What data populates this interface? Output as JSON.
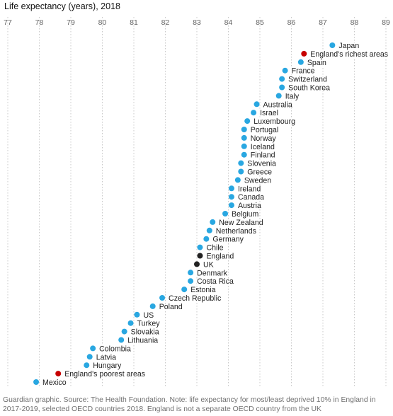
{
  "chart_data": {
    "type": "scatter",
    "title": "Life expectancy (years), 2018",
    "xlim": [
      77,
      89
    ],
    "x_ticks": [
      77,
      78,
      79,
      80,
      81,
      82,
      83,
      84,
      85,
      86,
      87,
      88,
      89
    ],
    "grid": "vertical dotted",
    "colors": {
      "country": "#29a7e1",
      "england_deprivation": "#c70000",
      "england_uk": "#222222"
    },
    "points": [
      {
        "label": "Japan",
        "value": 87.3,
        "group": "country"
      },
      {
        "label": "England's richest areas",
        "value": 86.4,
        "group": "england_deprivation"
      },
      {
        "label": "Spain",
        "value": 86.3,
        "group": "country"
      },
      {
        "label": "France",
        "value": 85.8,
        "group": "country"
      },
      {
        "label": "Switzerland",
        "value": 85.7,
        "group": "country"
      },
      {
        "label": "South Korea",
        "value": 85.7,
        "group": "country"
      },
      {
        "label": "Italy",
        "value": 85.6,
        "group": "country"
      },
      {
        "label": "Australia",
        "value": 84.9,
        "group": "country"
      },
      {
        "label": "Israel",
        "value": 84.8,
        "group": "country"
      },
      {
        "label": "Luxembourg",
        "value": 84.6,
        "group": "country"
      },
      {
        "label": "Portugal",
        "value": 84.5,
        "group": "country"
      },
      {
        "label": "Norway",
        "value": 84.5,
        "group": "country"
      },
      {
        "label": "Iceland",
        "value": 84.5,
        "group": "country"
      },
      {
        "label": "Finland",
        "value": 84.5,
        "group": "country"
      },
      {
        "label": "Slovenia",
        "value": 84.4,
        "group": "country"
      },
      {
        "label": "Greece",
        "value": 84.4,
        "group": "country"
      },
      {
        "label": "Sweden",
        "value": 84.3,
        "group": "country"
      },
      {
        "label": "Ireland",
        "value": 84.1,
        "group": "country"
      },
      {
        "label": "Canada",
        "value": 84.1,
        "group": "country"
      },
      {
        "label": "Austria",
        "value": 84.1,
        "group": "country"
      },
      {
        "label": "Belgium",
        "value": 83.9,
        "group": "country"
      },
      {
        "label": "New Zealand",
        "value": 83.5,
        "group": "country"
      },
      {
        "label": "Netherlands",
        "value": 83.4,
        "group": "country"
      },
      {
        "label": "Germany",
        "value": 83.3,
        "group": "country"
      },
      {
        "label": "Chile",
        "value": 83.1,
        "group": "country"
      },
      {
        "label": "England",
        "value": 83.1,
        "group": "england_uk"
      },
      {
        "label": "UK",
        "value": 83.0,
        "group": "england_uk"
      },
      {
        "label": "Denmark",
        "value": 82.8,
        "group": "country"
      },
      {
        "label": "Costa Rica",
        "value": 82.8,
        "group": "country"
      },
      {
        "label": "Estonia",
        "value": 82.6,
        "group": "country"
      },
      {
        "label": "Czech Republic",
        "value": 81.9,
        "group": "country"
      },
      {
        "label": "Poland",
        "value": 81.6,
        "group": "country"
      },
      {
        "label": "US",
        "value": 81.1,
        "group": "country"
      },
      {
        "label": "Turkey",
        "value": 80.9,
        "group": "country"
      },
      {
        "label": "Slovakia",
        "value": 80.7,
        "group": "country"
      },
      {
        "label": "Lithuania",
        "value": 80.6,
        "group": "country"
      },
      {
        "label": "Colombia",
        "value": 79.7,
        "group": "country"
      },
      {
        "label": "Latvia",
        "value": 79.6,
        "group": "country"
      },
      {
        "label": "Hungary",
        "value": 79.5,
        "group": "country"
      },
      {
        "label": "England's poorest areas",
        "value": 78.6,
        "group": "england_deprivation"
      },
      {
        "label": "Mexico",
        "value": 77.9,
        "group": "country"
      }
    ]
  },
  "footnote": "Guardian graphic. Source: The Health Foundation. Note: life expectancy for most/least deprived 10% in England in 2017-2019, selected OECD countries 2018. England is not a separate OECD country from the UK"
}
